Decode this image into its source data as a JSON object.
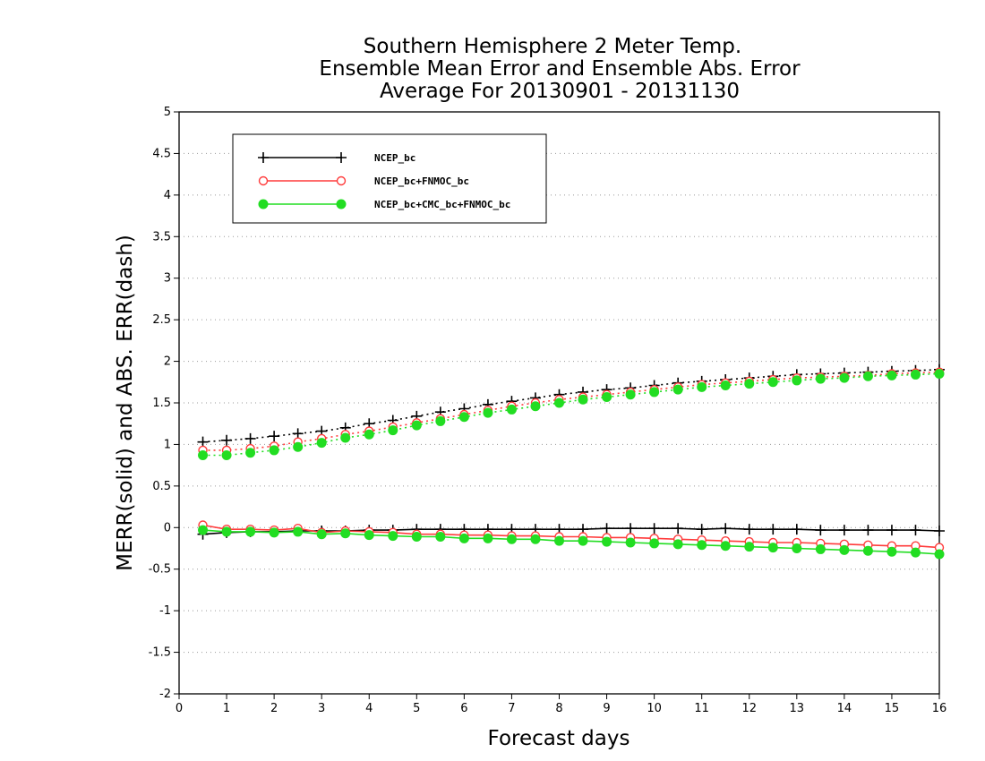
{
  "chart_data": {
    "type": "line",
    "title": [
      "Southern Hemisphere 2 Meter Temp.",
      "Ensemble Mean Error and Ensemble Abs. Error",
      "Average For 20130901 - 20131130"
    ],
    "xlabel": "Forecast days",
    "ylabel": "MERR(solid) and ABS. ERR(dash)",
    "xlim": [
      0,
      16
    ],
    "ylim": [
      -2,
      5
    ],
    "xticks": [
      0,
      1,
      2,
      3,
      4,
      5,
      6,
      7,
      8,
      9,
      10,
      11,
      12,
      13,
      14,
      15,
      16
    ],
    "xtick_labels": [
      "0",
      "1",
      "2",
      "3",
      "4",
      "5",
      "6",
      "7",
      "8",
      "9",
      "10",
      "11",
      "12",
      "13",
      "14",
      "15",
      "16"
    ],
    "yticks": [
      -2,
      -1.5,
      -1,
      -0.5,
      0,
      0.5,
      1,
      1.5,
      2,
      2.5,
      3,
      3.5,
      4,
      4.5,
      5
    ],
    "ytick_labels": [
      "-2",
      "-1.5",
      "-1",
      "-0.5",
      "0",
      "0.5",
      "1",
      "1.5",
      "2",
      "2.5",
      "3",
      "3.5",
      "4",
      "4.5",
      "5"
    ],
    "grid": "horizontal dotted",
    "legend_position": "top-left",
    "x": [
      0.5,
      1,
      1.5,
      2,
      2.5,
      3,
      3.5,
      4,
      4.5,
      5,
      5.5,
      6,
      6.5,
      7,
      7.5,
      8,
      8.5,
      9,
      9.5,
      10,
      10.5,
      11,
      11.5,
      12,
      12.5,
      13,
      13.5,
      14,
      14.5,
      15,
      15.5,
      16
    ],
    "series": [
      {
        "name": "NCEP_bc",
        "color": "#000000",
        "marker": "plus",
        "merr": [
          -0.08,
          -0.06,
          -0.05,
          -0.05,
          -0.04,
          -0.04,
          -0.04,
          -0.03,
          -0.03,
          -0.02,
          -0.02,
          -0.02,
          -0.02,
          -0.02,
          -0.02,
          -0.02,
          -0.02,
          -0.01,
          -0.01,
          -0.01,
          -0.01,
          -0.02,
          -0.01,
          -0.02,
          -0.02,
          -0.02,
          -0.03,
          -0.03,
          -0.03,
          -0.03,
          -0.03,
          -0.04
        ],
        "abs_err": [
          1.03,
          1.05,
          1.07,
          1.1,
          1.13,
          1.16,
          1.2,
          1.25,
          1.29,
          1.34,
          1.39,
          1.43,
          1.48,
          1.52,
          1.56,
          1.6,
          1.63,
          1.66,
          1.68,
          1.71,
          1.74,
          1.76,
          1.78,
          1.8,
          1.82,
          1.84,
          1.85,
          1.86,
          1.87,
          1.88,
          1.89,
          1.9
        ]
      },
      {
        "name": "NCEP_bc+FNMOC_bc",
        "color": "#ff3b3b",
        "marker": "open-circle",
        "merr": [
          0.03,
          -0.02,
          -0.02,
          -0.03,
          -0.01,
          -0.06,
          -0.04,
          -0.05,
          -0.06,
          -0.08,
          -0.08,
          -0.09,
          -0.09,
          -0.1,
          -0.1,
          -0.11,
          -0.11,
          -0.12,
          -0.12,
          -0.13,
          -0.14,
          -0.15,
          -0.16,
          -0.17,
          -0.18,
          -0.18,
          -0.19,
          -0.2,
          -0.21,
          -0.22,
          -0.22,
          -0.24
        ],
        "abs_err": [
          0.93,
          0.93,
          0.95,
          0.98,
          1.03,
          1.07,
          1.12,
          1.16,
          1.21,
          1.26,
          1.31,
          1.36,
          1.41,
          1.46,
          1.5,
          1.54,
          1.57,
          1.6,
          1.63,
          1.66,
          1.69,
          1.72,
          1.74,
          1.76,
          1.78,
          1.8,
          1.81,
          1.82,
          1.83,
          1.85,
          1.86,
          1.87
        ]
      },
      {
        "name": "NCEP_bc+CMC_bc+FNMOC_bc",
        "color": "#22dd22",
        "marker": "filled-circle",
        "merr": [
          -0.03,
          -0.05,
          -0.05,
          -0.06,
          -0.05,
          -0.08,
          -0.07,
          -0.09,
          -0.1,
          -0.11,
          -0.11,
          -0.13,
          -0.13,
          -0.14,
          -0.14,
          -0.16,
          -0.16,
          -0.17,
          -0.18,
          -0.19,
          -0.2,
          -0.21,
          -0.22,
          -0.23,
          -0.24,
          -0.25,
          -0.26,
          -0.27,
          -0.28,
          -0.29,
          -0.3,
          -0.32
        ],
        "abs_err": [
          0.87,
          0.87,
          0.9,
          0.93,
          0.97,
          1.02,
          1.08,
          1.12,
          1.17,
          1.23,
          1.28,
          1.33,
          1.38,
          1.42,
          1.46,
          1.5,
          1.54,
          1.57,
          1.6,
          1.63,
          1.66,
          1.69,
          1.71,
          1.73,
          1.75,
          1.77,
          1.79,
          1.8,
          1.82,
          1.83,
          1.84,
          1.85
        ]
      }
    ]
  }
}
